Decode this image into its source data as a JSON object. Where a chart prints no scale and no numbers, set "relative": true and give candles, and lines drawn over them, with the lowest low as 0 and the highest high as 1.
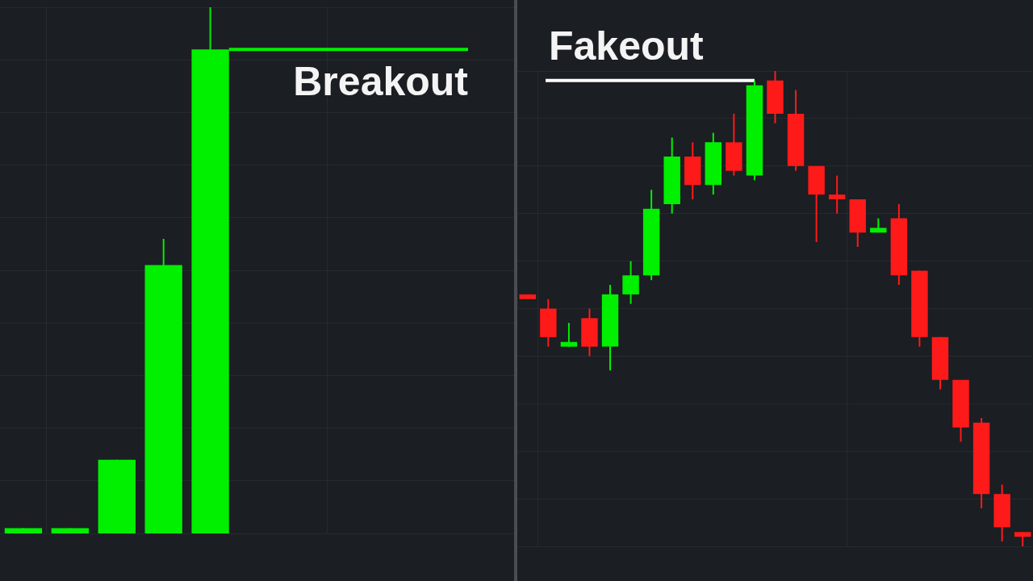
{
  "chart_data": [
    {
      "type": "candlestick",
      "relative": true,
      "categories": [
        null,
        null,
        null,
        null,
        null,
        null,
        null,
        null,
        null,
        null,
        null
      ],
      "ohlc": [
        [
          0,
          0.01,
          0,
          0.01
        ],
        [
          0,
          0.01,
          0,
          0.01
        ],
        [
          0,
          0.14,
          0,
          0.14
        ],
        [
          0,
          0.56,
          0,
          0.51
        ],
        [
          0,
          1,
          0,
          0.92
        ],
        null,
        null,
        null,
        null,
        null,
        null
      ],
      "colors": [
        "#00f000",
        "#00f000",
        "#00f000",
        "#00f000",
        "#00f000",
        null,
        null,
        null,
        null,
        null,
        null
      ],
      "ref_lines": [
        {
          "axis": "y",
          "value": 0.92,
          "label": "Breakout",
          "color": "#00f000"
        }
      ],
      "grid": true,
      "tick_labels": false
    },
    {
      "type": "candlestick",
      "relative": true,
      "categories": [
        null,
        null,
        null,
        null,
        null,
        null,
        null,
        null,
        null,
        null,
        null,
        null,
        null,
        null,
        null,
        null,
        null,
        null,
        null,
        null,
        null,
        null,
        null,
        null,
        null
      ],
      "ohlc": [
        [
          0.53,
          0.53,
          0.52,
          0.52
        ],
        [
          0.5,
          0.52,
          0.42,
          0.44
        ],
        [
          0.42,
          0.47,
          0.42,
          0.43
        ],
        [
          0.48,
          0.5,
          0.4,
          0.42
        ],
        [
          0.42,
          0.55,
          0.37,
          0.53
        ],
        [
          0.53,
          0.6,
          0.51,
          0.57
        ],
        [
          0.57,
          0.75,
          0.56,
          0.71
        ],
        [
          0.72,
          0.86,
          0.7,
          0.82
        ],
        [
          0.82,
          0.85,
          0.73,
          0.76
        ],
        [
          0.76,
          0.87,
          0.74,
          0.85
        ],
        [
          0.85,
          0.91,
          0.78,
          0.79
        ],
        [
          0.78,
          0.98,
          0.77,
          0.97
        ],
        [
          0.98,
          1,
          0.89,
          0.91
        ],
        [
          0.91,
          0.96,
          0.79,
          0.8
        ],
        [
          0.8,
          0.8,
          0.64,
          0.74
        ],
        [
          0.74,
          0.78,
          0.7,
          0.73
        ],
        [
          0.73,
          0.73,
          0.63,
          0.66
        ],
        [
          0.66,
          0.69,
          0.66,
          0.67
        ],
        [
          0.69,
          0.72,
          0.55,
          0.57
        ],
        [
          0.58,
          0.58,
          0.42,
          0.44
        ],
        [
          0.44,
          0.44,
          0.33,
          0.35
        ],
        [
          0.35,
          0.35,
          0.22,
          0.25
        ],
        [
          0.26,
          0.27,
          0.08,
          0.11
        ],
        [
          0.11,
          0.13,
          0.01,
          0.04
        ],
        [
          0.03,
          0.03,
          0,
          0.02
        ]
      ],
      "colors": [
        "#ff1a1a",
        "#ff1a1a",
        "#00f000",
        "#ff1a1a",
        "#00f000",
        "#00f000",
        "#00f000",
        "#00f000",
        "#ff1a1a",
        "#00f000",
        "#ff1a1a",
        "#00f000",
        "#ff1a1a",
        "#ff1a1a",
        "#ff1a1a",
        "#ff1a1a",
        "#ff1a1a",
        "#00f000",
        "#ff1a1a",
        "#ff1a1a",
        "#ff1a1a",
        "#ff1a1a",
        "#ff1a1a",
        "#ff1a1a",
        "#ff1a1a"
      ],
      "ref_lines": [
        {
          "axis": "y",
          "value": 0.98,
          "label": "Fakeout",
          "color": "#ffffff"
        }
      ],
      "grid": true,
      "tick_labels": false
    }
  ]
}
